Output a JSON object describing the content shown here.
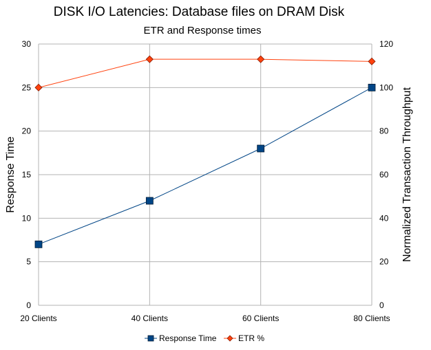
{
  "chart_data": {
    "type": "line",
    "title": "DISK I/O Latencies: Database files on DRAM Disk",
    "subtitle": "ETR and Response times",
    "categories": [
      "20 Clients",
      "40 Clients",
      "60 Clients",
      "80 Clients"
    ],
    "y_left": {
      "label": "Response Time",
      "range": [
        0,
        30
      ],
      "ticks": [
        "0",
        "5",
        "10",
        "15",
        "20",
        "25",
        "30"
      ]
    },
    "y_right": {
      "label": "Normalized Transaction Throughput",
      "range": [
        0,
        120
      ],
      "ticks": [
        "0",
        "20",
        "40",
        "60",
        "80",
        "100",
        "120"
      ]
    },
    "grid": true,
    "legend_position": "bottom",
    "series": [
      {
        "name": "Response Time",
        "axis": "left",
        "marker": "square",
        "color": "#004586",
        "values": [
          7,
          12,
          18,
          25
        ]
      },
      {
        "name": "ETR %",
        "axis": "right",
        "marker": "diamond",
        "color": "#ff420e",
        "values": [
          100,
          113,
          113,
          112
        ]
      }
    ]
  }
}
